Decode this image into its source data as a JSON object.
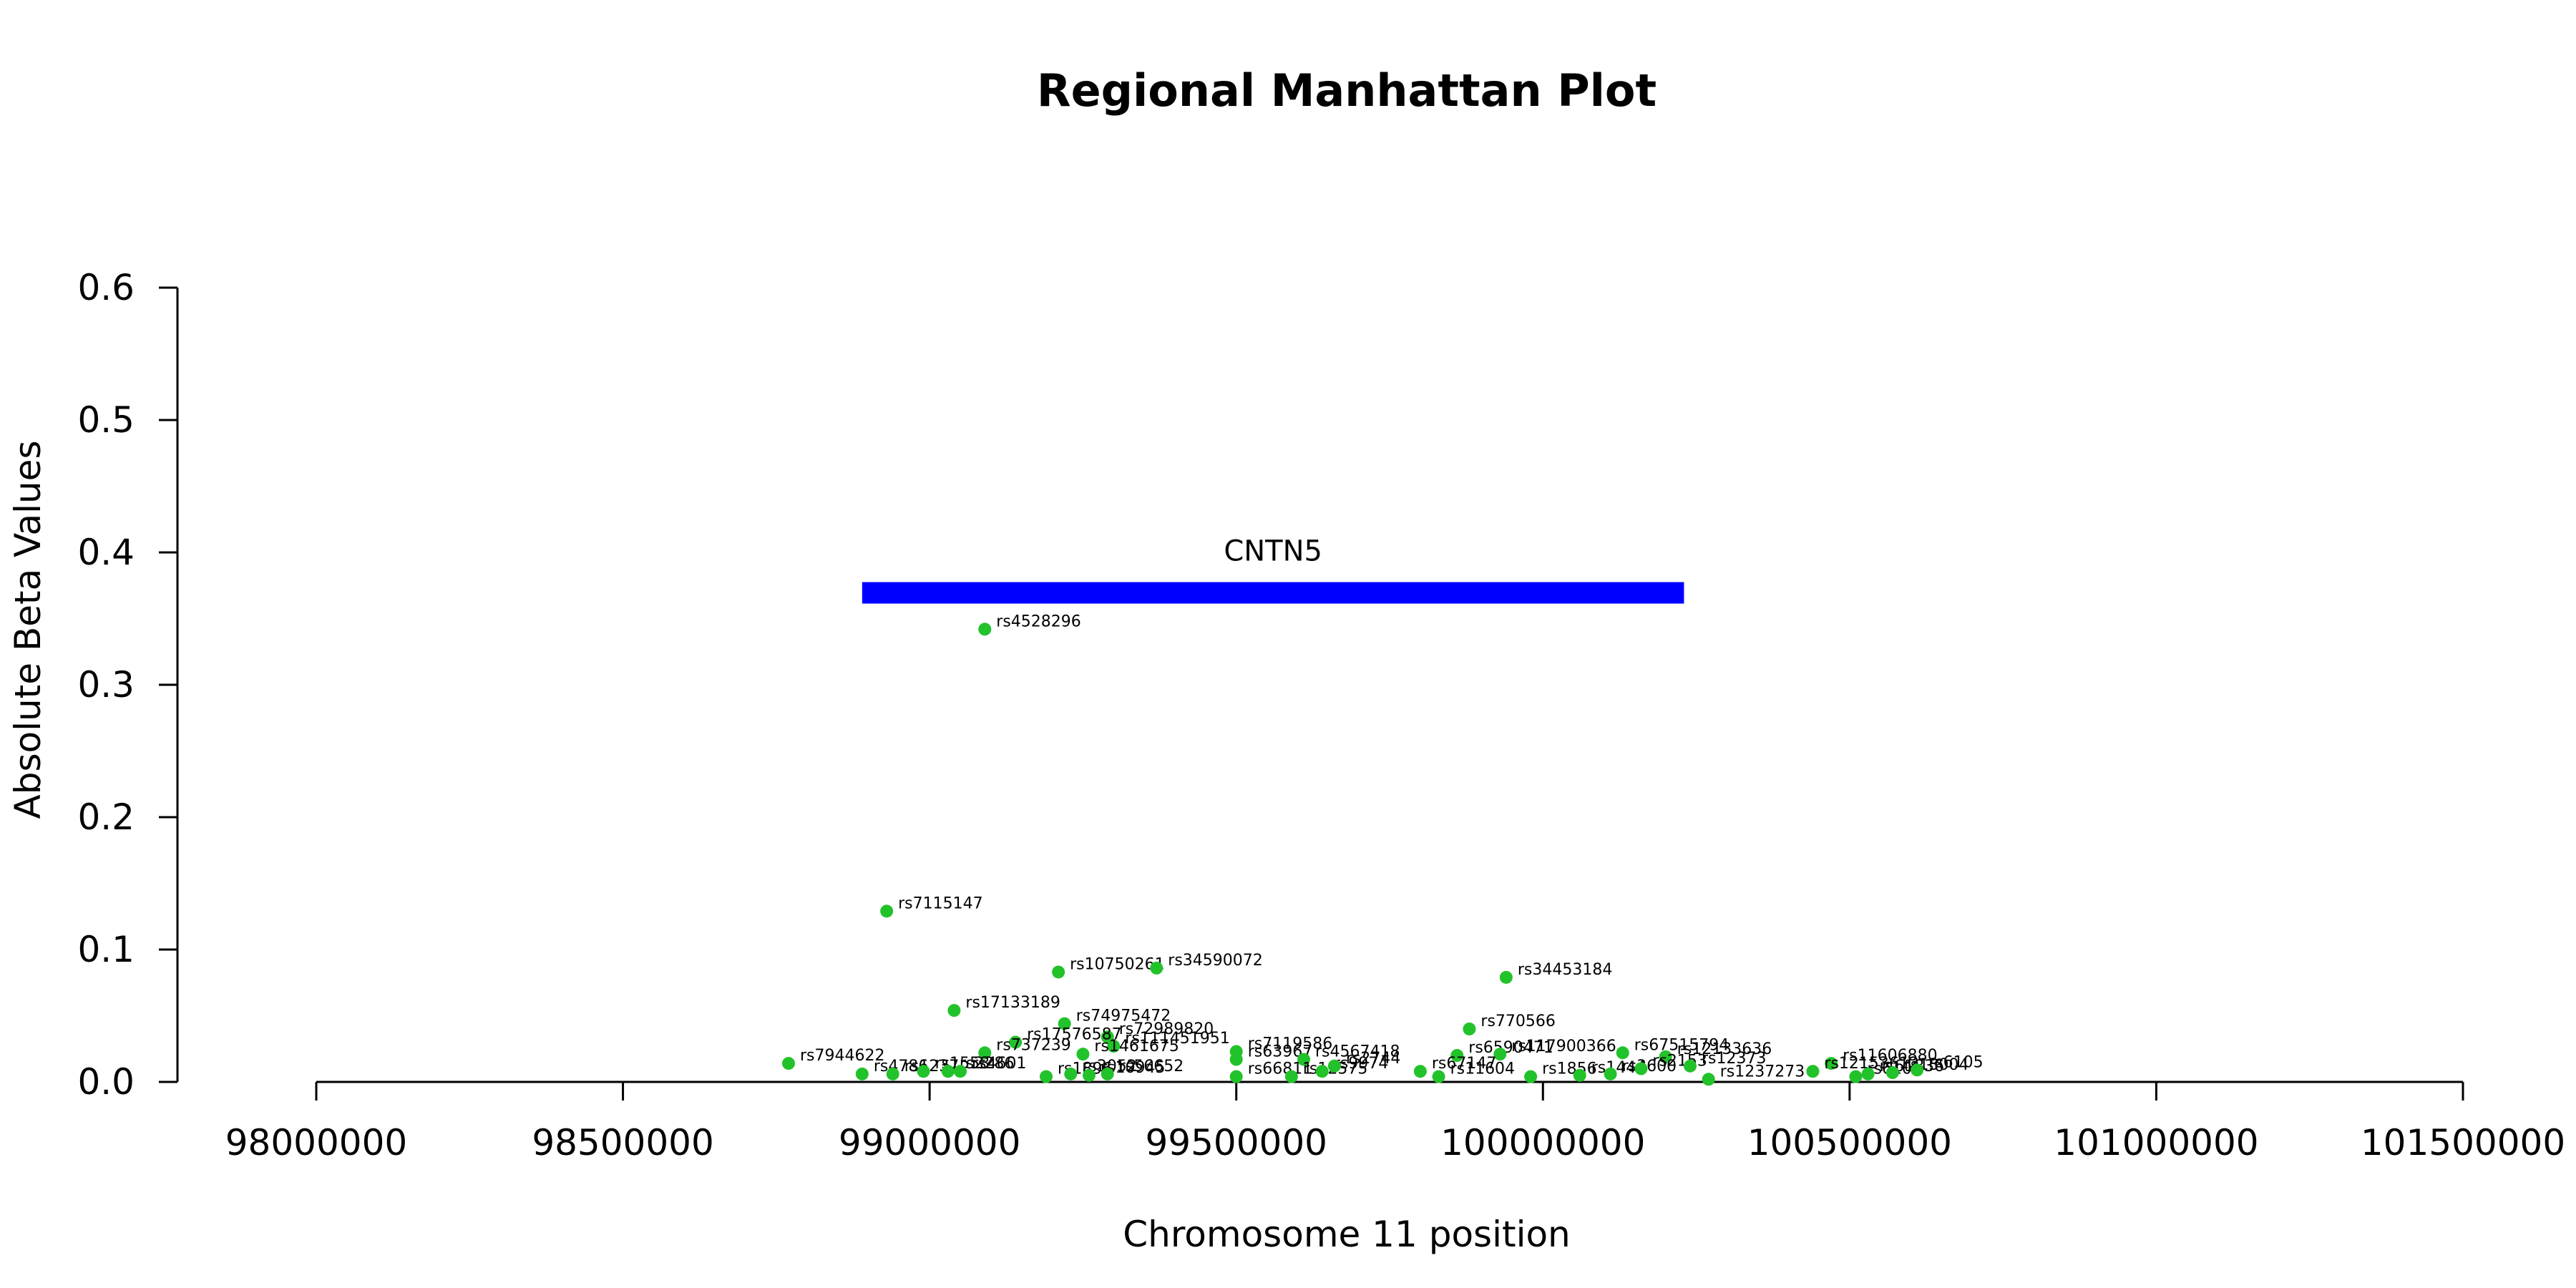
{
  "chart_data": {
    "type": "scatter",
    "title": "Regional Manhattan Plot",
    "xlabel": "Chromosome 11 position",
    "ylabel": "Absolute Beta Values",
    "xlim": [
      97800000,
      101500000
    ],
    "ylim": [
      0,
      0.6
    ],
    "xticks": [
      98000000,
      98500000,
      99000000,
      99500000,
      100000000,
      100500000,
      101000000,
      101500000
    ],
    "yticks": [
      0.0,
      0.1,
      0.2,
      0.3,
      0.4,
      0.5,
      0.6
    ],
    "xtick_labels": [
      "98000000",
      "98500000",
      "99000000",
      "99500000",
      "100000000",
      "100500000",
      "101000000",
      "101500000"
    ],
    "ytick_labels": [
      "0.0",
      "0.1",
      "0.2",
      "0.3",
      "0.4",
      "0.5",
      "0.6"
    ],
    "grid": false,
    "point_color": "#22c22a",
    "gene": {
      "name": "CNTN5",
      "start": 98890000,
      "end": 100230000,
      "y": 0.37,
      "color": "#0000ff"
    },
    "points": [
      {
        "label": "rs4528296",
        "x": 99090000,
        "y": 0.342
      },
      {
        "label": "rs7115147",
        "x": 98930000,
        "y": 0.129
      },
      {
        "label": "rs10750261",
        "x": 99210000,
        "y": 0.083
      },
      {
        "label": "rs34590072",
        "x": 99370000,
        "y": 0.086
      },
      {
        "label": "rs34453184",
        "x": 99940000,
        "y": 0.079
      },
      {
        "label": "rs17133189",
        "x": 99040000,
        "y": 0.054
      },
      {
        "label": "rs74975472",
        "x": 99220000,
        "y": 0.044
      },
      {
        "label": "rs770566",
        "x": 99880000,
        "y": 0.04
      },
      {
        "label": "rs72989820",
        "x": 99290000,
        "y": 0.034
      },
      {
        "label": "rs17576587",
        "x": 99140000,
        "y": 0.03
      },
      {
        "label": "rs111451951",
        "x": 99300000,
        "y": 0.027
      },
      {
        "label": "rs737239",
        "x": 99090000,
        "y": 0.022
      },
      {
        "label": "rs1461675",
        "x": 99250000,
        "y": 0.021
      },
      {
        "label": "rs7119586",
        "x": 99500000,
        "y": 0.023
      },
      {
        "label": "rs63967",
        "x": 99500000,
        "y": 0.017
      },
      {
        "label": "rs4567418",
        "x": 99610000,
        "y": 0.017
      },
      {
        "label": "rs6590471",
        "x": 99860000,
        "y": 0.02
      },
      {
        "label": "rs117900366",
        "x": 99930000,
        "y": 0.021
      },
      {
        "label": "rs67515794",
        "x": 100130000,
        "y": 0.022
      },
      {
        "label": "rs12133636",
        "x": 100200000,
        "y": 0.019
      },
      {
        "label": "rs7944622",
        "x": 98770000,
        "y": 0.014
      },
      {
        "label": "rs11606880",
        "x": 100470000,
        "y": 0.014
      },
      {
        "label": "rs12153612",
        "x": 100440000,
        "y": 0.008
      },
      {
        "label": "rs4786",
        "x": 98890000,
        "y": 0.006
      },
      {
        "label": "rs1237",
        "x": 98940000,
        "y": 0.006
      },
      {
        "label": "rs1558",
        "x": 98990000,
        "y": 0.008
      },
      {
        "label": "rs2286",
        "x": 99030000,
        "y": 0.008
      },
      {
        "label": "rs4601",
        "x": 99050000,
        "y": 0.008
      },
      {
        "label": "rs1896",
        "x": 99190000,
        "y": 0.004
      },
      {
        "label": "rs3052",
        "x": 99230000,
        "y": 0.006
      },
      {
        "label": "rs10945",
        "x": 99260000,
        "y": 0.005
      },
      {
        "label": "rs56652",
        "x": 99290000,
        "y": 0.006
      },
      {
        "label": "rs66811",
        "x": 99500000,
        "y": 0.004
      },
      {
        "label": "rs12575",
        "x": 99590000,
        "y": 0.004
      },
      {
        "label": "rs9974",
        "x": 99640000,
        "y": 0.008
      },
      {
        "label": "rs2744",
        "x": 99660000,
        "y": 0.012
      },
      {
        "label": "rs67147",
        "x": 99800000,
        "y": 0.008
      },
      {
        "label": "rs11604",
        "x": 99830000,
        "y": 0.004
      },
      {
        "label": "rs1856",
        "x": 99980000,
        "y": 0.004
      },
      {
        "label": "rs1444",
        "x": 100060000,
        "y": 0.005
      },
      {
        "label": "rs3600",
        "x": 100110000,
        "y": 0.006
      },
      {
        "label": "rs2153",
        "x": 100160000,
        "y": 0.01
      },
      {
        "label": "rs12373",
        "x": 100240000,
        "y": 0.012
      },
      {
        "label": "rs1237273",
        "x": 100270000,
        "y": 0.002
      },
      {
        "label": "rs6101",
        "x": 100510000,
        "y": 0.004
      },
      {
        "label": "rs61836",
        "x": 100530000,
        "y": 0.006
      },
      {
        "label": "rs13004",
        "x": 100570000,
        "y": 0.007
      },
      {
        "label": "rs6105",
        "x": 100610000,
        "y": 0.009
      }
    ]
  }
}
